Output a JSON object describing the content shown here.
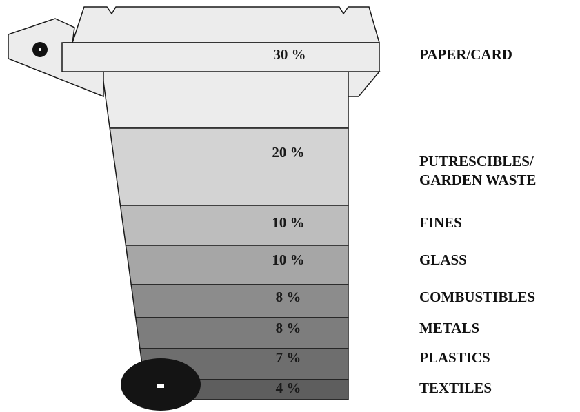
{
  "chart_data": {
    "type": "bar",
    "title": "",
    "categories": [
      "PAPER/CARD",
      "PUTRESCIBLES/ GARDEN WASTE",
      "FINES",
      "GLASS",
      "COMBUSTIBLES",
      "METALS",
      "PLASTICS",
      "TEXTILES"
    ],
    "values": [
      30,
      20,
      10,
      10,
      8,
      8,
      7,
      4
    ],
    "value_labels": [
      "30 %",
      "20 %",
      "10 %",
      "10 %",
      "8 %",
      "8 %",
      "7 %",
      "4 %"
    ],
    "unit": "%"
  },
  "segments": [
    {
      "percent_label": "30 %",
      "label_lines": [
        "PAPER/CARD"
      ],
      "color": "#ececec"
    },
    {
      "percent_label": "20 %",
      "label_lines": [
        "PUTRESCIBLES/",
        "GARDEN WASTE"
      ],
      "color": "#d3d3d3"
    },
    {
      "percent_label": "10 %",
      "label_lines": [
        "FINES"
      ],
      "color": "#bdbdbd"
    },
    {
      "percent_label": "10 %",
      "label_lines": [
        "GLASS"
      ],
      "color": "#a6a6a6"
    },
    {
      "percent_label": "8 %",
      "label_lines": [
        "COMBUSTIBLES"
      ],
      "color": "#8c8c8c"
    },
    {
      "percent_label": "8 %",
      "label_lines": [
        "METALS"
      ],
      "color": "#7d7d7d"
    },
    {
      "percent_label": "7 %",
      "label_lines": [
        "PLASTICS"
      ],
      "color": "#6e6e6e"
    },
    {
      "percent_label": "4 %",
      "label_lines": [
        "TEXTILES"
      ],
      "color": "#5e5e5e"
    }
  ],
  "lid_color": "#ececec",
  "wheel_color": "#141414"
}
